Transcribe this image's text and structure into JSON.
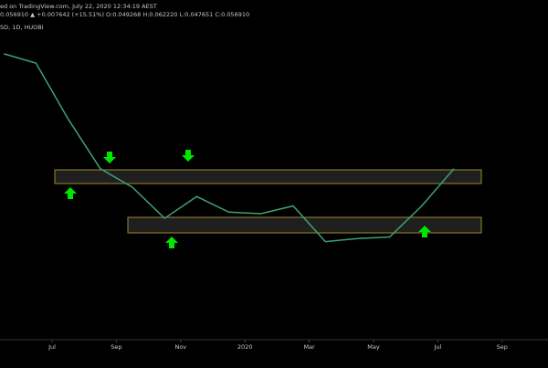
{
  "chart_data": {
    "type": "line",
    "subtitle": "ed on TradingView.com, July 22, 2020 12:34:19 AEST",
    "annotations": [
      "0.056910 ▲ +0.007642 (+15.51%) O:0.049268 H:0.062220 L:0.047651 C:0.056910"
    ],
    "title": "SD, 1D, HUOBI",
    "x": [
      "2019-05",
      "2019-06",
      "2019-07",
      "2019-08",
      "2019-09",
      "2019-10",
      "2019-11",
      "2019-12",
      "2020-01",
      "2020-02",
      "2020-03",
      "2020-04",
      "2020-05",
      "2020-06",
      "2020-07"
    ],
    "values": [
      0.0643,
      0.0637,
      0.0601,
      0.0569,
      0.0557,
      0.0537,
      0.0551,
      0.0541,
      0.054,
      0.0545,
      0.0522,
      0.0524,
      0.0525,
      0.0545,
      0.0569
    ],
    "color": "#3fa07a",
    "xlim": [
      "2019-06",
      "2020-10"
    ],
    "xticks": [
      {
        "value": "2019-07",
        "label": "Jul"
      },
      {
        "value": "2019-09",
        "label": "Sep"
      },
      {
        "value": "2019-11",
        "label": "Nov"
      },
      {
        "value": "2020-01",
        "label": "2020"
      },
      {
        "value": "2020-03",
        "label": "Mar"
      },
      {
        "value": "2020-05",
        "label": "May"
      },
      {
        "value": "2020-07",
        "label": "Jul"
      },
      {
        "value": "2020-09",
        "label": "Sep"
      }
    ],
    "ylim": [
      0.046,
      0.066
    ]
  }
}
